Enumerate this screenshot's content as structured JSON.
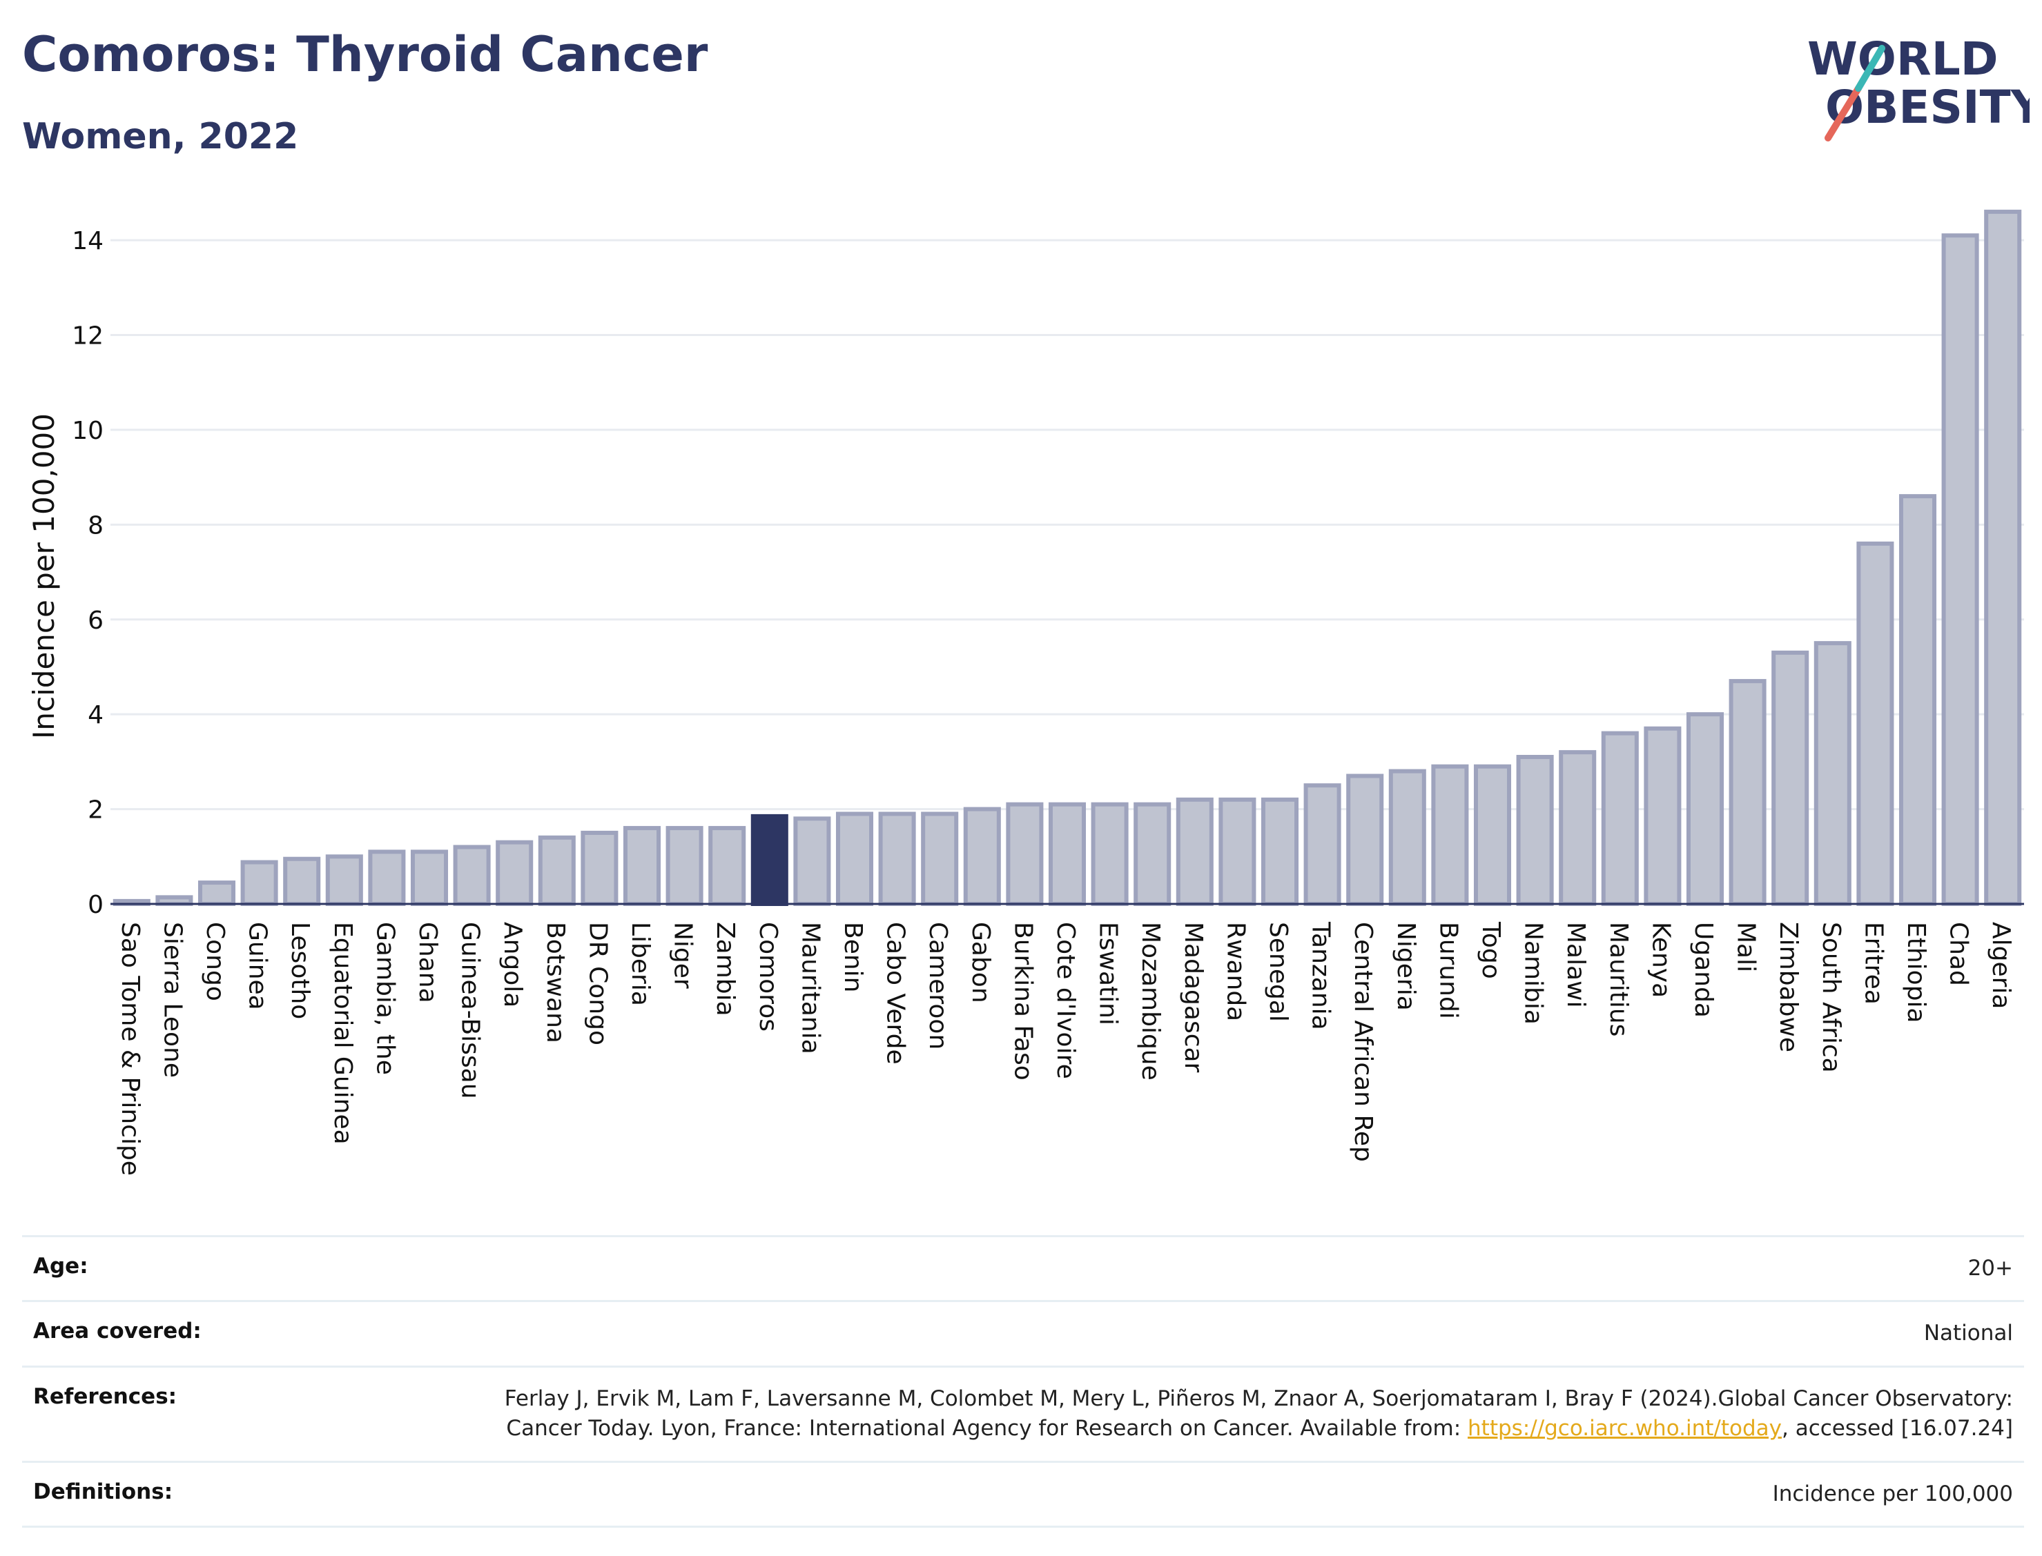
{
  "header": {
    "title": "Comoros: Thyroid Cancer",
    "subtitle": "Women, 2022",
    "logo_line1": "WORLD",
    "logo_line2": "OBESITY"
  },
  "colors": {
    "bar_fill": "#bfc3d0",
    "bar_stroke": "#9ea3bd",
    "highlight": "#2d3663",
    "title": "#2d3663",
    "grid": "#e8ebf0",
    "link": "#e4a91b"
  },
  "chart_data": {
    "type": "bar",
    "title": "Comoros: Thyroid Cancer",
    "subtitle": "Women, 2022",
    "ylabel": "Incidence per 100,000",
    "xlabel": "",
    "ylim": [
      0,
      14.7
    ],
    "yticks": [
      0,
      2,
      4,
      6,
      8,
      10,
      12,
      14
    ],
    "grid": true,
    "highlight": "Comoros",
    "categories": [
      "Sao Tome & Principe",
      "Sierra Leone",
      "Congo",
      "Guinea",
      "Lesotho",
      "Equatorial Guinea",
      "Gambia, the",
      "Ghana",
      "Guinea-Bissau",
      "Angola",
      "Botswana",
      "DR Congo",
      "Liberia",
      "Niger",
      "Zambia",
      "Comoros",
      "Mauritania",
      "Benin",
      "Cabo Verde",
      "Cameroon",
      "Gabon",
      "Burkina Faso",
      "Cote d'Ivoire",
      "Eswatini",
      "Mozambique",
      "Madagascar",
      "Rwanda",
      "Senegal",
      "Tanzania",
      "Central African Rep",
      "Nigeria",
      "Burundi",
      "Togo",
      "Namibia",
      "Malawi",
      "Mauritius",
      "Kenya",
      "Uganda",
      "Mali",
      "Zimbabwe",
      "South Africa",
      "Eritrea",
      "Ethiopia",
      "Chad",
      "Algeria"
    ],
    "values": [
      0.06,
      0.14,
      0.45,
      0.88,
      0.95,
      1.0,
      1.1,
      1.1,
      1.2,
      1.3,
      1.4,
      1.5,
      1.6,
      1.6,
      1.6,
      1.85,
      1.8,
      1.9,
      1.9,
      1.9,
      2.0,
      2.1,
      2.1,
      2.1,
      2.1,
      2.2,
      2.2,
      2.2,
      2.5,
      2.7,
      2.8,
      2.9,
      2.9,
      3.1,
      3.2,
      3.6,
      3.7,
      4.0,
      4.7,
      5.3,
      5.5,
      7.6,
      8.6,
      14.1,
      14.6
    ]
  },
  "info": {
    "age_label": "Age:",
    "age_value": "20+",
    "area_label": "Area covered:",
    "area_value": "National",
    "refs_label": "References:",
    "refs_text1": "Ferlay J, Ervik M, Lam F, Laversanne M, Colombet M, Mery L, Piñeros M, Znaor A, Soerjomataram I, Bray F (2024).Global Cancer Observatory: Cancer Today. Lyon, France: International Agency for Research on Cancer. Available from: ",
    "refs_link": "https://gco.iarc.who.int/today",
    "refs_text2": ", accessed [16.07.24]",
    "defs_label": "Definitions:",
    "defs_value": "Incidence per 100,000"
  }
}
